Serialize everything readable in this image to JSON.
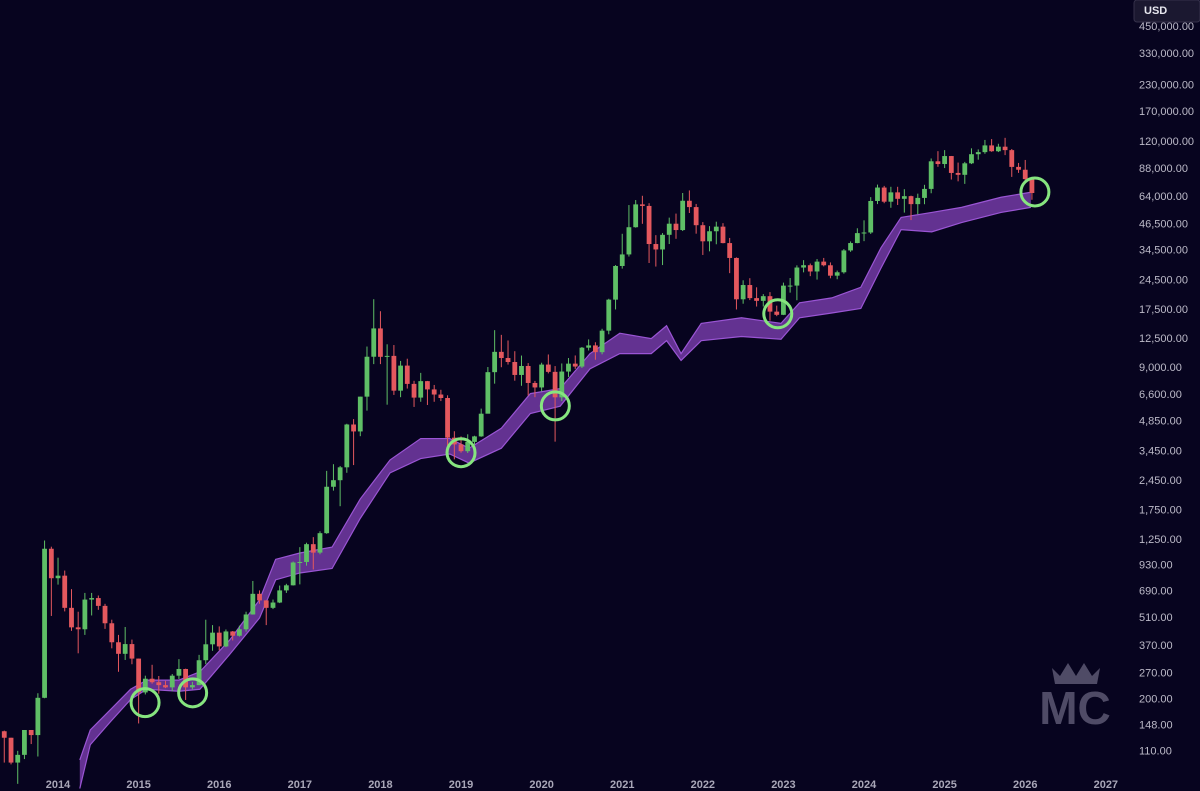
{
  "chart_data": {
    "type": "candlestick",
    "log_scale": true,
    "grid": false,
    "currency": "USD",
    "watermark": "MC",
    "up_color": "#5fbf66",
    "down_color": "#e4585e",
    "band_color": "#7b3fae",
    "highlight_color": "#86e57f",
    "xlim": [
      2013.28,
      2027.28
    ],
    "ylim": [
      70,
      614000
    ],
    "xticks": [
      2014,
      2015,
      2016,
      2017,
      2018,
      2019,
      2020,
      2021,
      2022,
      2023,
      2024,
      2025,
      2026,
      2027
    ],
    "yticks": [
      {
        "value": 110,
        "label": "110.00"
      },
      {
        "value": 148,
        "label": "148.00"
      },
      {
        "value": 200,
        "label": "200.00"
      },
      {
        "value": 270,
        "label": "270.00"
      },
      {
        "value": 370,
        "label": "370.00"
      },
      {
        "value": 510,
        "label": "510.00"
      },
      {
        "value": 690,
        "label": "690.00"
      },
      {
        "value": 930,
        "label": "930.00"
      },
      {
        "value": 1250,
        "label": "1,250.00"
      },
      {
        "value": 1750,
        "label": "1,750.00"
      },
      {
        "value": 2450,
        "label": "2,450.00"
      },
      {
        "value": 3450,
        "label": "3,450.00"
      },
      {
        "value": 4850,
        "label": "4,850.00"
      },
      {
        "value": 6600,
        "label": "6,600.00"
      },
      {
        "value": 9000,
        "label": "9,000.00"
      },
      {
        "value": 12500,
        "label": "12,500.00"
      },
      {
        "value": 17500,
        "label": "17,500.00"
      },
      {
        "value": 24500,
        "label": "24,500.00"
      },
      {
        "value": 34500,
        "label": "34,500.00"
      },
      {
        "value": 46500,
        "label": "46,500.00"
      },
      {
        "value": 64000,
        "label": "64,000.00"
      },
      {
        "value": 88000,
        "label": "88,000.00"
      },
      {
        "value": 120000,
        "label": "120,000.00"
      },
      {
        "value": 170000,
        "label": "170,000.00"
      },
      {
        "value": 230000,
        "label": "230,000.00"
      },
      {
        "value": 330000,
        "label": "330,000.00"
      },
      {
        "value": 450000,
        "label": "450,000.00"
      }
    ],
    "x": [
      2013.333,
      2013.417,
      2013.5,
      2013.583,
      2013.667,
      2013.75,
      2013.833,
      2013.917,
      2014.0,
      2014.083,
      2014.167,
      2014.25,
      2014.333,
      2014.417,
      2014.5,
      2014.583,
      2014.667,
      2014.75,
      2014.833,
      2014.917,
      2015.0,
      2015.083,
      2015.167,
      2015.25,
      2015.333,
      2015.417,
      2015.5,
      2015.583,
      2015.667,
      2015.75,
      2015.833,
      2015.917,
      2016.0,
      2016.083,
      2016.167,
      2016.25,
      2016.333,
      2016.417,
      2016.5,
      2016.583,
      2016.667,
      2016.75,
      2016.833,
      2016.917,
      2017.0,
      2017.083,
      2017.167,
      2017.25,
      2017.333,
      2017.417,
      2017.5,
      2017.583,
      2017.667,
      2017.75,
      2017.833,
      2017.917,
      2018.0,
      2018.083,
      2018.167,
      2018.25,
      2018.333,
      2018.417,
      2018.5,
      2018.583,
      2018.667,
      2018.75,
      2018.833,
      2018.917,
      2019.0,
      2019.083,
      2019.167,
      2019.25,
      2019.333,
      2019.417,
      2019.5,
      2019.583,
      2019.667,
      2019.75,
      2019.833,
      2019.917,
      2020.0,
      2020.083,
      2020.167,
      2020.25,
      2020.333,
      2020.417,
      2020.5,
      2020.583,
      2020.667,
      2020.75,
      2020.833,
      2020.917,
      2021.0,
      2021.083,
      2021.167,
      2021.25,
      2021.333,
      2021.417,
      2021.5,
      2021.583,
      2021.667,
      2021.75,
      2021.833,
      2021.917,
      2022.0,
      2022.083,
      2022.167,
      2022.25,
      2022.333,
      2022.417,
      2022.5,
      2022.583,
      2022.667,
      2022.75,
      2022.833,
      2022.917,
      2023.0,
      2023.083,
      2023.167,
      2023.25,
      2023.333,
      2023.417,
      2023.5,
      2023.583,
      2023.667,
      2023.75,
      2023.833,
      2023.917,
      2024.0,
      2024.083,
      2024.167,
      2024.25,
      2024.333,
      2024.417,
      2024.5,
      2024.583,
      2024.667,
      2024.75,
      2024.833,
      2024.917,
      2025.0,
      2025.083,
      2025.167,
      2025.25,
      2025.333,
      2025.417,
      2025.5,
      2025.583,
      2025.667,
      2025.75,
      2025.833,
      2025.917,
      2026.0,
      2026.083
    ],
    "open": [
      139,
      129,
      97,
      106,
      141,
      133,
      204,
      1129,
      805,
      829,
      573,
      458,
      448,
      630,
      641,
      586,
      480,
      386,
      338,
      378,
      320,
      217,
      254,
      244,
      236,
      230,
      263,
      284,
      230,
      236,
      314,
      377,
      431,
      368,
      437,
      416,
      448,
      531,
      673,
      624,
      573,
      609,
      700,
      742,
      964,
      970,
      1190,
      1080,
      1350,
      2300,
      2480,
      2875,
      4700,
      4340,
      6470,
      10230,
      14160,
      10220,
      10330,
      6930,
      9240,
      7490,
      6400,
      7730,
      7030,
      6630,
      6370,
      4040,
      3740,
      3460,
      3850,
      4100,
      5320,
      8570,
      10820,
      10080,
      9630,
      8300,
      9200,
      7570,
      7190,
      9350,
      8600,
      6420,
      8630,
      9450,
      9140,
      11350,
      11650,
      10780,
      13800,
      19700,
      28990,
      33100,
      45240,
      58800,
      57750,
      37300,
      35040,
      41460,
      47100,
      43790,
      61300,
      57000,
      46300,
      38480,
      43190,
      45540,
      37710,
      31790,
      19780,
      23300,
      20050,
      19430,
      20500,
      17170,
      16550,
      23140,
      23150,
      28480,
      29250,
      27220,
      30480,
      29230,
      25940,
      26970,
      34660,
      37720,
      42280,
      42580,
      61130,
      71330,
      60640,
      67490,
      62680,
      64620,
      58970,
      63330,
      70220,
      96400,
      93430,
      102400,
      84350,
      82550,
      94200,
      104600,
      107100,
      115700,
      108200,
      114000,
      109600,
      90400,
      87500,
      78600
    ],
    "high": [
      140,
      129,
      111,
      141,
      141,
      215,
      1242,
      1156,
      1019,
      879,
      710,
      548,
      680,
      680,
      660,
      600,
      500,
      420,
      460,
      398,
      320,
      263,
      298,
      262,
      248,
      268,
      318,
      285,
      245,
      334,
      500,
      470,
      463,
      447,
      439,
      467,
      548,
      780,
      700,
      625,
      630,
      740,
      755,
      975,
      1150,
      1210,
      1290,
      1380,
      2760,
      2980,
      2920,
      4740,
      5000,
      6470,
      11500,
      19800,
      17250,
      11800,
      11700,
      9750,
      10000,
      7760,
      8500,
      7750,
      7400,
      7000,
      6570,
      4350,
      4100,
      4200,
      4130,
      5640,
      9090,
      13880,
      13150,
      12330,
      10900,
      10370,
      9510,
      7750,
      9550,
      10500,
      9190,
      9470,
      10080,
      10380,
      11440,
      12480,
      12080,
      14100,
      19900,
      29300,
      41950,
      58350,
      61790,
      64900,
      59600,
      41300,
      42300,
      50500,
      52900,
      67000,
      69000,
      59100,
      47990,
      45800,
      48200,
      47400,
      40000,
      31990,
      24600,
      25200,
      22700,
      20990,
      21480,
      18390,
      23950,
      25250,
      29200,
      31000,
      29820,
      31400,
      31800,
      30200,
      27500,
      35200,
      38420,
      44700,
      48970,
      63900,
      73800,
      72700,
      71950,
      71950,
      70000,
      65000,
      66500,
      73600,
      99600,
      108300,
      109600,
      102500,
      95000,
      95750,
      111900,
      110500,
      123200,
      124400,
      117900,
      126200,
      111000,
      94600,
      97900,
      79000
    ],
    "low": [
      97,
      95,
      76,
      101,
      120,
      104,
      203,
      522,
      748,
      550,
      440,
      340,
      420,
      525,
      560,
      450,
      360,
      275,
      315,
      300,
      152,
      212,
      240,
      214,
      228,
      220,
      253,
      199,
      225,
      236,
      300,
      350,
      352,
      365,
      394,
      412,
      436,
      530,
      600,
      470,
      565,
      605,
      680,
      740,
      750,
      930,
      890,
      1060,
      1340,
      2200,
      1840,
      2700,
      2950,
      4110,
      5510,
      9400,
      9400,
      5900,
      6600,
      6430,
      7100,
      5750,
      6100,
      5880,
      6100,
      6150,
      3650,
      3150,
      3400,
      3390,
      3730,
      4080,
      5330,
      7510,
      9070,
      9350,
      7770,
      7330,
      6550,
      6430,
      6870,
      8450,
      3860,
      6150,
      8110,
      8900,
      8990,
      10990,
      9880,
      10520,
      13240,
      17600,
      28130,
      32300,
      45000,
      47040,
      30000,
      28800,
      29300,
      37300,
      39600,
      43300,
      53250,
      42000,
      32900,
      34300,
      37200,
      37600,
      26700,
      17600,
      18800,
      19600,
      18200,
      18200,
      15480,
      16300,
      16500,
      21350,
      19570,
      26950,
      25800,
      24800,
      28860,
      25170,
      24900,
      26550,
      34100,
      37630,
      38550,
      41880,
      59000,
      59600,
      56550,
      58400,
      53500,
      49100,
      52500,
      58900,
      66800,
      90500,
      89200,
      78200,
      76600,
      74400,
      93400,
      98200,
      105100,
      107500,
      107200,
      103500,
      80600,
      84400,
      76500,
      62000
    ],
    "close": [
      129,
      97,
      106,
      141,
      133,
      204,
      1129,
      805,
      829,
      573,
      458,
      448,
      630,
      641,
      586,
      480,
      386,
      338,
      378,
      320,
      217,
      254,
      244,
      236,
      230,
      263,
      284,
      230,
      236,
      314,
      377,
      431,
      368,
      437,
      416,
      448,
      531,
      673,
      624,
      573,
      609,
      700,
      742,
      964,
      970,
      1190,
      1080,
      1350,
      2300,
      2480,
      2875,
      4700,
      4340,
      6470,
      10230,
      14160,
      10220,
      10330,
      6930,
      9240,
      7490,
      6400,
      7730,
      7030,
      6630,
      6370,
      4040,
      3740,
      3460,
      3850,
      4100,
      5320,
      8570,
      10820,
      10080,
      9630,
      8300,
      9200,
      7570,
      7190,
      9350,
      8600,
      6420,
      8630,
      9450,
      9140,
      11350,
      11650,
      10780,
      13800,
      19700,
      28990,
      33100,
      45240,
      58800,
      57750,
      37300,
      35040,
      41460,
      47100,
      43790,
      61300,
      57000,
      46300,
      38480,
      43190,
      45540,
      37710,
      31790,
      19780,
      23300,
      20050,
      19430,
      20500,
      17170,
      16550,
      23140,
      23150,
      28480,
      29250,
      27220,
      30480,
      29230,
      25940,
      26970,
      34660,
      37720,
      42280,
      42580,
      61130,
      71330,
      60640,
      67490,
      62680,
      64620,
      58970,
      63330,
      70220,
      96400,
      93430,
      102400,
      84350,
      82550,
      94200,
      104600,
      107100,
      115700,
      108200,
      114000,
      109600,
      90400,
      87500,
      78600,
      67000
    ],
    "band": {
      "x": [
        2014.27,
        2014.4,
        2014.65,
        2014.9,
        2015.1,
        2015.5,
        2015.76,
        2016.13,
        2016.5,
        2016.7,
        2017.0,
        2017.4,
        2017.75,
        2018.12,
        2018.5,
        2018.86,
        2019.1,
        2019.5,
        2019.86,
        2020.23,
        2020.6,
        2020.97,
        2021.36,
        2021.55,
        2021.73,
        2021.98,
        2022.48,
        2022.97,
        2023.2,
        2023.6,
        2023.96,
        2024.21,
        2024.46,
        2024.84,
        2025.21,
        2025.7,
        2026.07
      ],
      "upper": [
        100,
        141,
        178,
        225,
        250,
        250,
        275,
        396,
        628,
        1000,
        1075,
        1150,
        2000,
        3130,
        4000,
        4000,
        3580,
        4500,
        6700,
        7100,
        10600,
        13400,
        12600,
        14600,
        10600,
        15000,
        16000,
        15000,
        19000,
        20100,
        22700,
        35700,
        50600,
        53600,
        56800,
        63800,
        67600
      ],
      "lower": [
        72,
        119,
        155,
        200,
        225,
        220,
        225,
        336,
        510,
        790,
        855,
        900,
        1600,
        2700,
        3180,
        3350,
        3020,
        3580,
        5330,
        5800,
        8900,
        10600,
        10600,
        12300,
        9800,
        12300,
        12900,
        12500,
        16000,
        16900,
        17800,
        28300,
        44000,
        42900,
        47700,
        53600,
        56800
      ]
    },
    "highlights": [
      {
        "x": 2015.08,
        "y": 193
      },
      {
        "x": 2015.67,
        "y": 216
      },
      {
        "x": 2019.0,
        "y": 3400
      },
      {
        "x": 2020.17,
        "y": 5820
      },
      {
        "x": 2022.93,
        "y": 16750
      },
      {
        "x": 2026.12,
        "y": 67800
      }
    ]
  }
}
